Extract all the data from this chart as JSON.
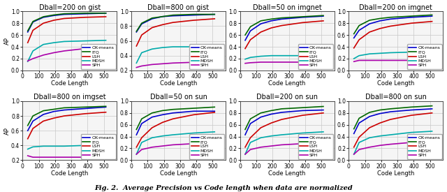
{
  "code_lengths": [
    32,
    64,
    128,
    192,
    256,
    384,
    512
  ],
  "subplots": [
    {
      "title": "Dball=200 on gist",
      "ylim": [
        0,
        1.0
      ],
      "yticks": [
        0,
        0.2,
        0.4,
        0.6,
        0.8,
        1.0
      ],
      "series": {
        "OK-means": [
          0.65,
          0.82,
          0.9,
          0.93,
          0.95,
          0.96,
          0.97
        ],
        "ITQ": [
          0.67,
          0.83,
          0.91,
          0.94,
          0.96,
          0.97,
          0.97
        ],
        "LSH": [
          0.47,
          0.68,
          0.8,
          0.85,
          0.88,
          0.9,
          0.91
        ],
        "MDSH": [
          0.15,
          0.33,
          0.44,
          0.47,
          0.49,
          0.5,
          0.51
        ],
        "SPH": [
          0.16,
          0.2,
          0.26,
          0.3,
          0.33,
          0.37,
          0.41
        ]
      }
    },
    {
      "title": "Dball=800 on gist",
      "ylim": [
        0.2,
        1.0
      ],
      "yticks": [
        0.2,
        0.4,
        0.6,
        0.8,
        1.0
      ],
      "series": {
        "OK-means": [
          0.72,
          0.83,
          0.9,
          0.93,
          0.94,
          0.95,
          0.96
        ],
        "ITQ": [
          0.73,
          0.84,
          0.91,
          0.93,
          0.95,
          0.96,
          0.96
        ],
        "LSH": [
          0.53,
          0.68,
          0.78,
          0.82,
          0.85,
          0.88,
          0.9
        ],
        "MDSH": [
          0.3,
          0.44,
          0.49,
          0.51,
          0.52,
          0.52,
          0.52
        ],
        "SPH": [
          0.24,
          0.26,
          0.28,
          0.29,
          0.3,
          0.31,
          0.32
        ]
      }
    },
    {
      "title": "Dball=50 on imgnet",
      "ylim": [
        0,
        1.0
      ],
      "yticks": [
        0,
        0.2,
        0.4,
        0.6,
        0.8,
        1.0
      ],
      "series": {
        "OK-means": [
          0.51,
          0.67,
          0.79,
          0.84,
          0.87,
          0.9,
          0.92
        ],
        "ITQ": [
          0.6,
          0.74,
          0.84,
          0.87,
          0.89,
          0.91,
          0.93
        ],
        "LSH": [
          0.37,
          0.52,
          0.65,
          0.72,
          0.76,
          0.81,
          0.84
        ],
        "MDSH": [
          0.19,
          0.22,
          0.24,
          0.25,
          0.25,
          0.25,
          0.25
        ],
        "SPH": [
          0.12,
          0.13,
          0.14,
          0.14,
          0.14,
          0.14,
          0.14
        ]
      }
    },
    {
      "title": "Dball=200 on imgnet",
      "ylim": [
        0,
        1.0
      ],
      "yticks": [
        0,
        0.2,
        0.4,
        0.6,
        0.8,
        1.0
      ],
      "series": {
        "OK-means": [
          0.55,
          0.68,
          0.79,
          0.84,
          0.87,
          0.9,
          0.92
        ],
        "ITQ": [
          0.62,
          0.76,
          0.85,
          0.88,
          0.9,
          0.92,
          0.94
        ],
        "LSH": [
          0.38,
          0.52,
          0.65,
          0.71,
          0.75,
          0.8,
          0.83
        ],
        "MDSH": [
          0.2,
          0.25,
          0.28,
          0.29,
          0.3,
          0.31,
          0.31
        ],
        "SPH": [
          0.15,
          0.17,
          0.17,
          0.17,
          0.17,
          0.17,
          0.17
        ]
      }
    },
    {
      "title": "Dball=800 on imgset",
      "ylim": [
        0.2,
        1.0
      ],
      "yticks": [
        0.2,
        0.4,
        0.6,
        0.8,
        1.0
      ],
      "series": {
        "OK-means": [
          0.6,
          0.73,
          0.82,
          0.86,
          0.88,
          0.9,
          0.92
        ],
        "ITQ": [
          0.67,
          0.8,
          0.87,
          0.89,
          0.91,
          0.92,
          0.93
        ],
        "LSH": [
          0.49,
          0.63,
          0.73,
          0.77,
          0.8,
          0.83,
          0.85
        ],
        "MDSH": [
          0.35,
          0.38,
          0.39,
          0.39,
          0.39,
          0.4,
          0.4
        ],
        "SPH": [
          0.26,
          0.24,
          0.24,
          0.24,
          0.24,
          0.24,
          0.24
        ]
      }
    },
    {
      "title": "Dball=50 on sun",
      "ylim": [
        0,
        1.0
      ],
      "yticks": [
        0,
        0.2,
        0.4,
        0.6,
        0.8,
        1.0
      ],
      "series": {
        "OK-means": [
          0.43,
          0.62,
          0.73,
          0.77,
          0.8,
          0.83,
          0.83
        ],
        "ITQ": [
          0.52,
          0.7,
          0.8,
          0.84,
          0.86,
          0.88,
          0.9
        ],
        "LSH": [
          0.22,
          0.38,
          0.55,
          0.64,
          0.7,
          0.77,
          0.81
        ],
        "MDSH": [
          0.1,
          0.3,
          0.38,
          0.41,
          0.43,
          0.46,
          0.48
        ],
        "SPH": [
          0.1,
          0.18,
          0.22,
          0.24,
          0.26,
          0.28,
          0.29
        ]
      }
    },
    {
      "title": "Dball=200 on sun",
      "ylim": [
        0,
        1.0
      ],
      "yticks": [
        0,
        0.2,
        0.4,
        0.6,
        0.8,
        1.0
      ],
      "series": {
        "OK-means": [
          0.43,
          0.62,
          0.73,
          0.78,
          0.81,
          0.84,
          0.85
        ],
        "ITQ": [
          0.52,
          0.7,
          0.8,
          0.84,
          0.87,
          0.89,
          0.91
        ],
        "LSH": [
          0.22,
          0.38,
          0.55,
          0.63,
          0.69,
          0.76,
          0.8
        ],
        "MDSH": [
          0.1,
          0.3,
          0.38,
          0.41,
          0.43,
          0.46,
          0.48
        ],
        "SPH": [
          0.1,
          0.18,
          0.22,
          0.24,
          0.26,
          0.28,
          0.3
        ]
      }
    },
    {
      "title": "Dball=800 on sun",
      "ylim": [
        0,
        1.0
      ],
      "yticks": [
        0,
        0.2,
        0.4,
        0.6,
        0.8,
        1.0
      ],
      "series": {
        "OK-means": [
          0.45,
          0.63,
          0.74,
          0.79,
          0.82,
          0.85,
          0.87
        ],
        "ITQ": [
          0.53,
          0.71,
          0.81,
          0.85,
          0.87,
          0.9,
          0.92
        ],
        "LSH": [
          0.22,
          0.39,
          0.55,
          0.63,
          0.69,
          0.76,
          0.8
        ],
        "MDSH": [
          0.1,
          0.3,
          0.38,
          0.41,
          0.43,
          0.47,
          0.49
        ],
        "SPH": [
          0.1,
          0.18,
          0.22,
          0.25,
          0.27,
          0.3,
          0.32
        ]
      }
    }
  ],
  "colors": {
    "OK-means": "#0000cc",
    "ITQ": "#006600",
    "LSH": "#cc0000",
    "MDSH": "#00aaaa",
    "SPH": "#aa00aa"
  },
  "xlabel": "Code Length",
  "ylabel": "AP",
  "xticks": [
    0,
    100,
    200,
    300,
    400,
    500
  ],
  "xlim": [
    0,
    580
  ],
  "figcaption": "Fig. 2.  Average Precision vs Code length when data are normalized",
  "legend_order": [
    "OK-means",
    "ITQ",
    "LSH",
    "MDSH",
    "SPH"
  ],
  "bg_color": "#f5f5f5",
  "grid_color": "#c8c8c8",
  "title_fontsize": 7,
  "tick_fontsize": 5.5,
  "label_fontsize": 6,
  "legend_fontsize": 4.5,
  "line_width": 1.2,
  "caption_fontsize": 7
}
